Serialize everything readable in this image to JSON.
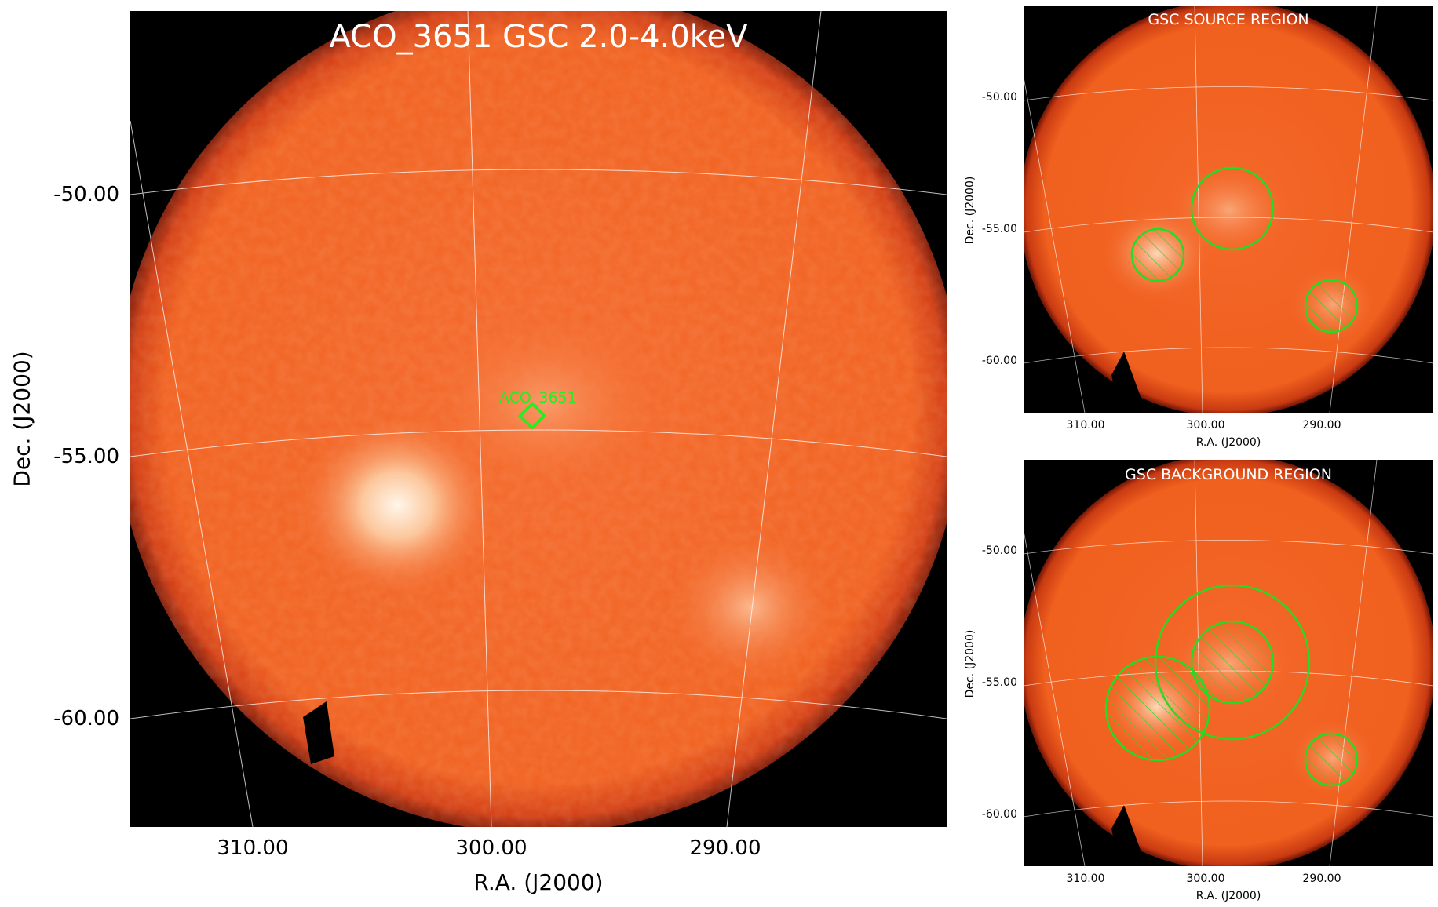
{
  "main": {
    "title": "ACO_3651 GSC 2.0-4.0keV",
    "source_label": "ACO_3651",
    "xlabel": "R.A. (J2000)",
    "ylabel": "Dec. (J2000)",
    "xticks": [
      "310.00",
      "300.00",
      "290.00"
    ],
    "yticks": [
      "-50.00",
      "-55.00",
      "-60.00"
    ]
  },
  "source_panel": {
    "title": "GSC SOURCE REGION",
    "xlabel": "R.A. (J2000)",
    "ylabel": "Dec. (J2000)",
    "xticks": [
      "310.00",
      "300.00",
      "290.00"
    ],
    "yticks": [
      "-50.00",
      "-55.00",
      "-60.00"
    ]
  },
  "background_panel": {
    "title": "GSC BACKGROUND REGION",
    "xlabel": "R.A. (J2000)",
    "ylabel": "Dec. (J2000)",
    "xticks": [
      "310.00",
      "300.00",
      "290.00"
    ],
    "yticks": [
      "-50.00",
      "-55.00",
      "-60.00"
    ]
  },
  "colors": {
    "disk": "#f2601f",
    "region": "#22dd22",
    "grid": "#ffffff"
  }
}
